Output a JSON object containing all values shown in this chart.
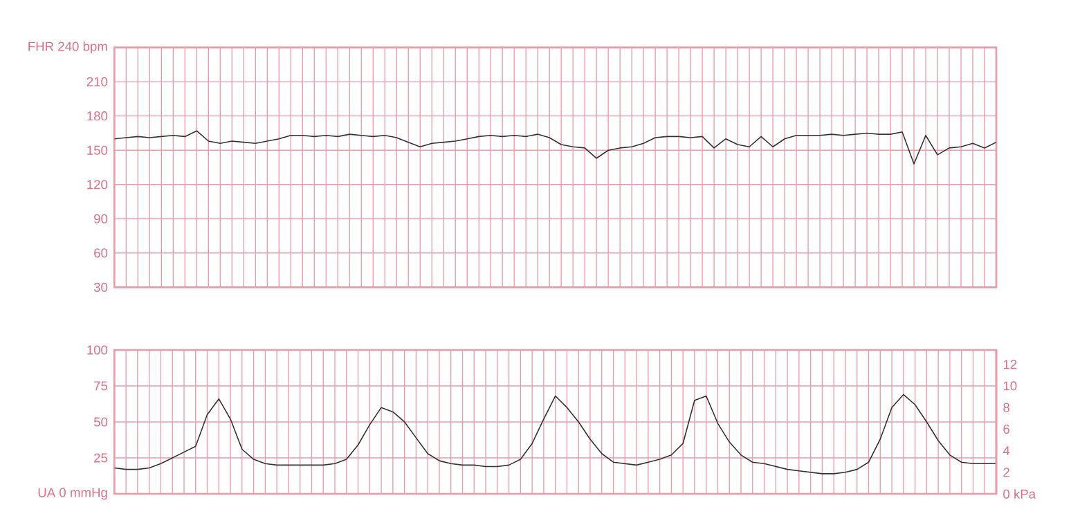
{
  "chart_data": [
    {
      "type": "line",
      "categories": [
        null,
        null,
        null,
        null,
        null,
        null,
        null,
        null,
        null,
        null,
        null,
        null,
        null,
        null,
        null,
        null,
        null,
        null,
        null,
        null,
        null,
        null,
        null,
        null,
        null,
        null,
        null,
        null,
        null,
        null,
        null,
        null,
        null,
        null,
        null,
        null,
        null,
        null,
        null,
        null,
        null,
        null,
        null,
        null,
        null,
        null,
        null,
        null,
        null,
        null,
        null,
        null,
        null,
        null,
        null,
        null,
        null,
        null,
        null,
        null,
        null,
        null,
        null,
        null,
        null,
        null,
        null,
        null,
        null,
        null,
        null,
        null,
        null,
        null,
        null,
        null
      ],
      "series": [
        {
          "color": "#333333",
          "values": [
            160,
            161,
            162,
            161,
            162,
            163,
            162,
            167,
            158,
            156,
            158,
            157,
            156,
            158,
            160,
            163,
            163,
            162,
            163,
            162,
            164,
            163,
            162,
            163,
            161,
            157,
            153,
            156,
            157,
            158,
            160,
            162,
            163,
            162,
            163,
            162,
            164,
            161,
            155,
            153,
            152,
            143,
            150,
            152,
            153,
            156,
            161,
            162,
            162,
            161,
            162,
            152,
            160,
            155,
            153,
            162,
            153,
            160,
            163,
            163,
            163,
            164,
            163,
            164,
            165,
            164,
            164,
            166,
            138,
            163,
            146,
            152,
            153,
            156,
            152,
            157
          ]
        }
      ],
      "ylim": [
        30,
        240
      ],
      "yticks": [
        30,
        60,
        90,
        120,
        150,
        180,
        210,
        {
          "value": 240,
          "label": "FHR 240 bpm"
        }
      ],
      "grid": true,
      "tick_labels": "y"
    },
    {
      "type": "line",
      "categories": [
        null,
        null,
        null,
        null,
        null,
        null,
        null,
        null,
        null,
        null,
        null,
        null,
        null,
        null,
        null,
        null,
        null,
        null,
        null,
        null,
        null,
        null,
        null,
        null,
        null,
        null,
        null,
        null,
        null,
        null,
        null,
        null,
        null,
        null,
        null,
        null,
        null,
        null,
        null,
        null,
        null,
        null,
        null,
        null,
        null,
        null,
        null,
        null,
        null,
        null,
        null,
        null,
        null,
        null,
        null,
        null,
        null,
        null,
        null,
        null,
        null,
        null,
        null,
        null,
        null,
        null,
        null,
        null,
        null,
        null,
        null,
        null,
        null,
        null,
        null,
        null,
        null
      ],
      "series": [
        {
          "color": "#333333",
          "values": [
            18,
            17,
            17,
            18,
            21,
            25,
            29,
            33,
            55,
            66,
            52,
            31,
            24,
            21,
            20,
            20,
            20,
            20,
            20,
            21,
            24,
            34,
            48,
            60,
            57,
            50,
            39,
            28,
            23,
            21,
            20,
            20,
            19,
            19,
            20,
            24,
            35,
            52,
            68,
            60,
            50,
            38,
            28,
            22,
            21,
            20,
            22,
            24,
            27,
            35,
            65,
            68,
            49,
            36,
            27,
            22,
            21,
            19,
            17,
            16,
            15,
            14,
            14,
            15,
            17,
            22,
            38,
            60,
            69,
            62,
            50,
            37,
            27,
            22,
            21,
            21,
            21
          ]
        }
      ],
      "ylim": [
        0,
        100
      ],
      "yticks": [
        {
          "value": 0,
          "label": "UA 0 mmHg"
        },
        25,
        50,
        75,
        100
      ],
      "y2lim": [
        0,
        13.33
      ],
      "y2ticks": [
        {
          "value": 0,
          "label": "0 kPa"
        },
        2,
        4,
        6,
        8,
        10,
        12
      ],
      "grid": true,
      "tick_labels": "y"
    }
  ]
}
